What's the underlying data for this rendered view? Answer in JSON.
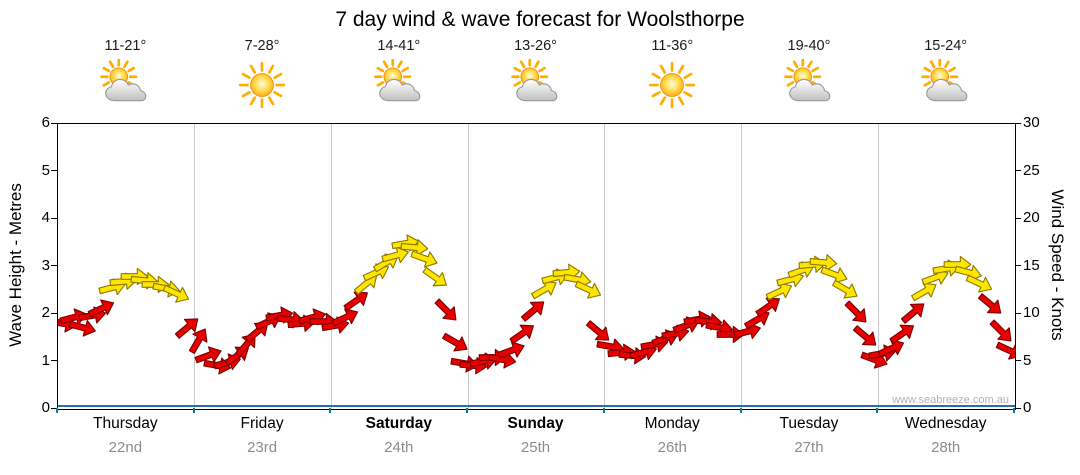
{
  "watermark": "www.seabreeze.com.au",
  "chart_data": {
    "type": "scatter",
    "subtype": "wind-direction-arrows",
    "title": "7 day wind & wave forecast for Woolsthorpe",
    "y_left": {
      "label": "Wave Height - Metres",
      "min": 0,
      "max": 6,
      "ticks": [
        0,
        1,
        2,
        3,
        4,
        5,
        6
      ]
    },
    "y_right": {
      "label": "Wind Speed - Knots",
      "min": 0,
      "max": 30,
      "ticks": [
        0,
        5,
        10,
        15,
        20,
        25,
        30
      ]
    },
    "grid": "vertical-day-separators",
    "legend_position": "none",
    "colors": {
      "red": "#e80000",
      "red_stroke": "#7d0000",
      "yellow": "#ffe600",
      "yellow_stroke": "#8f7a00"
    },
    "wave_line": {
      "color": "#2a6fa8",
      "approx_value_m": 0.05
    },
    "arrow_format": "[day_fraction, wind_speed_knots, direction_deg_clockwise_from_east, color(r=red,y=yellow)]",
    "days": [
      {
        "name": "Thursday",
        "date": "22nd",
        "temp": "11-21°",
        "icon": "partly-cloudy",
        "weekend": false,
        "arrows": [
          [
            0.04,
            9.0,
            10,
            "r"
          ],
          [
            0.11,
            9.6,
            -15,
            "r"
          ],
          [
            0.18,
            8.6,
            15,
            "r"
          ],
          [
            0.25,
            9.8,
            -10,
            "r"
          ],
          [
            0.32,
            10.6,
            -25,
            "r"
          ],
          [
            0.4,
            12.8,
            -15,
            "y"
          ],
          [
            0.48,
            13.4,
            -5,
            "y"
          ],
          [
            0.56,
            13.9,
            0,
            "y"
          ],
          [
            0.63,
            13.5,
            5,
            "y"
          ],
          [
            0.71,
            13.1,
            0,
            "y"
          ],
          [
            0.79,
            12.7,
            10,
            "y"
          ],
          [
            0.87,
            12.2,
            25,
            "y"
          ],
          [
            0.95,
            8.6,
            -40,
            "r"
          ]
        ]
      },
      {
        "name": "Friday",
        "date": "23rd",
        "temp": "7-28°",
        "icon": "sunny",
        "weekend": false,
        "arrows": [
          [
            0.03,
            7.2,
            -60,
            "r"
          ],
          [
            0.1,
            5.6,
            -20,
            "r"
          ],
          [
            0.17,
            4.6,
            10,
            "r"
          ],
          [
            0.24,
            4.9,
            -15,
            "r"
          ],
          [
            0.31,
            5.6,
            -35,
            "r"
          ],
          [
            0.38,
            6.8,
            -50,
            "r"
          ],
          [
            0.46,
            8.2,
            -40,
            "r"
          ],
          [
            0.54,
            9.2,
            -25,
            "r"
          ],
          [
            0.62,
            9.8,
            -10,
            "r"
          ],
          [
            0.7,
            9.4,
            5,
            "r"
          ],
          [
            0.78,
            9.0,
            -5,
            "r"
          ],
          [
            0.86,
            9.6,
            -15,
            "r"
          ],
          [
            0.94,
            9.2,
            0,
            "r"
          ]
        ]
      },
      {
        "name": "Saturday",
        "date": "24th",
        "temp": "14-41°",
        "icon": "partly-cloudy",
        "weekend": true,
        "arrows": [
          [
            0.03,
            8.8,
            -10,
            "r"
          ],
          [
            0.1,
            9.6,
            -25,
            "r"
          ],
          [
            0.18,
            11.4,
            -35,
            "r"
          ],
          [
            0.26,
            13.2,
            -40,
            "y"
          ],
          [
            0.33,
            14.4,
            -25,
            "y"
          ],
          [
            0.4,
            15.4,
            -30,
            "y"
          ],
          [
            0.47,
            16.2,
            -15,
            "y"
          ],
          [
            0.54,
            17.4,
            -10,
            "y"
          ],
          [
            0.61,
            17.0,
            5,
            "y"
          ],
          [
            0.68,
            15.8,
            20,
            "y"
          ],
          [
            0.76,
            13.8,
            35,
            "y"
          ],
          [
            0.84,
            10.4,
            45,
            "r"
          ],
          [
            0.91,
            7.0,
            30,
            "r"
          ],
          [
            0.97,
            4.8,
            10,
            "r"
          ]
        ]
      },
      {
        "name": "Sunday",
        "date": "25th",
        "temp": "13-26°",
        "icon": "partly-cloudy",
        "weekend": true,
        "arrows": [
          [
            0.04,
            4.6,
            5,
            "r"
          ],
          [
            0.11,
            5.0,
            -10,
            "r"
          ],
          [
            0.18,
            5.4,
            0,
            "r"
          ],
          [
            0.25,
            5.2,
            10,
            "r"
          ],
          [
            0.32,
            6.2,
            -20,
            "r"
          ],
          [
            0.4,
            8.0,
            -35,
            "r"
          ],
          [
            0.48,
            10.4,
            -40,
            "r"
          ],
          [
            0.56,
            12.6,
            -30,
            "y"
          ],
          [
            0.64,
            13.8,
            -15,
            "y"
          ],
          [
            0.72,
            14.4,
            -5,
            "y"
          ],
          [
            0.8,
            13.6,
            10,
            "y"
          ],
          [
            0.88,
            12.6,
            25,
            "y"
          ],
          [
            0.95,
            8.2,
            40,
            "r"
          ]
        ]
      },
      {
        "name": "Monday",
        "date": "26th",
        "temp": "11-36°",
        "icon": "sunny",
        "weekend": false,
        "arrows": [
          [
            0.04,
            6.6,
            10,
            "r"
          ],
          [
            0.12,
            6.0,
            -5,
            "r"
          ],
          [
            0.2,
            5.6,
            5,
            "r"
          ],
          [
            0.28,
            6.0,
            -15,
            "r"
          ],
          [
            0.36,
            6.8,
            -10,
            "r"
          ],
          [
            0.44,
            7.4,
            -20,
            "r"
          ],
          [
            0.52,
            8.0,
            -10,
            "r"
          ],
          [
            0.6,
            8.8,
            -20,
            "r"
          ],
          [
            0.68,
            9.4,
            -10,
            "r"
          ],
          [
            0.76,
            9.2,
            5,
            "r"
          ],
          [
            0.84,
            8.6,
            10,
            "r"
          ],
          [
            0.92,
            7.8,
            0,
            "r"
          ]
        ]
      },
      {
        "name": "Tuesday",
        "date": "27th",
        "temp": "19-40°",
        "icon": "partly-cloudy",
        "weekend": false,
        "arrows": [
          [
            0.04,
            8.2,
            -15,
            "r"
          ],
          [
            0.12,
            9.4,
            -30,
            "r"
          ],
          [
            0.2,
            10.8,
            -35,
            "r"
          ],
          [
            0.28,
            12.4,
            -25,
            "y"
          ],
          [
            0.36,
            13.6,
            -15,
            "y"
          ],
          [
            0.44,
            14.6,
            -20,
            "y"
          ],
          [
            0.52,
            15.2,
            -5,
            "y"
          ],
          [
            0.6,
            15.4,
            5,
            "y"
          ],
          [
            0.68,
            14.2,
            20,
            "y"
          ],
          [
            0.76,
            12.6,
            30,
            "y"
          ],
          [
            0.84,
            10.2,
            45,
            "r"
          ],
          [
            0.91,
            7.6,
            40,
            "r"
          ],
          [
            0.97,
            5.2,
            20,
            "r"
          ]
        ]
      },
      {
        "name": "Wednesday",
        "date": "28th",
        "temp": "15-24°",
        "icon": "partly-cloudy",
        "weekend": false,
        "arrows": [
          [
            0.03,
            5.8,
            -10,
            "r"
          ],
          [
            0.1,
            6.4,
            -25,
            "r"
          ],
          [
            0.18,
            8.0,
            -35,
            "r"
          ],
          [
            0.26,
            10.2,
            -40,
            "r"
          ],
          [
            0.34,
            12.4,
            -30,
            "y"
          ],
          [
            0.42,
            13.8,
            -20,
            "y"
          ],
          [
            0.5,
            14.8,
            -10,
            "y"
          ],
          [
            0.58,
            15.2,
            0,
            "y"
          ],
          [
            0.66,
            14.4,
            15,
            "y"
          ],
          [
            0.74,
            13.2,
            25,
            "y"
          ],
          [
            0.82,
            11.0,
            40,
            "r"
          ],
          [
            0.9,
            8.2,
            45,
            "r"
          ],
          [
            0.96,
            6.2,
            25,
            "r"
          ]
        ]
      }
    ]
  }
}
